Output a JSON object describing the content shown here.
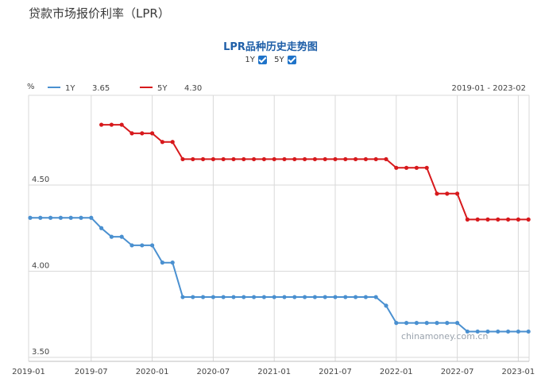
{
  "page": {
    "title": "贷款市场报价利率（LPR）"
  },
  "toggles": [
    {
      "label": "1Y",
      "checked": true
    },
    {
      "label": "5Y",
      "checked": true
    }
  ],
  "watermark": "chinamoney.com.cn",
  "chart_data": {
    "type": "line",
    "title": "LPR品种历史走势图",
    "ylabel": "%",
    "date_range": "2019-01 - 2023-02",
    "ylim": [
      3.5,
      4.9
    ],
    "yticks": [
      "3.50",
      "4.00",
      "4.50"
    ],
    "x_ticks": [
      "2019-01",
      "2019-07",
      "2020-01",
      "2020-07",
      "2021-01",
      "2021-07",
      "2022-01",
      "2022-07",
      "2023-01"
    ],
    "x": [
      "2019-01",
      "2019-02",
      "2019-03",
      "2019-04",
      "2019-05",
      "2019-06",
      "2019-07",
      "2019-08",
      "2019-09",
      "2019-10",
      "2019-11",
      "2019-12",
      "2020-01",
      "2020-02",
      "2020-03",
      "2020-04",
      "2020-05",
      "2020-06",
      "2020-07",
      "2020-08",
      "2020-09",
      "2020-10",
      "2020-11",
      "2020-12",
      "2021-01",
      "2021-02",
      "2021-03",
      "2021-04",
      "2021-05",
      "2021-06",
      "2021-07",
      "2021-08",
      "2021-09",
      "2021-10",
      "2021-11",
      "2021-12",
      "2022-01",
      "2022-02",
      "2022-03",
      "2022-04",
      "2022-05",
      "2022-06",
      "2022-07",
      "2022-08",
      "2022-09",
      "2022-10",
      "2022-11",
      "2022-12",
      "2023-01",
      "2023-02"
    ],
    "series": [
      {
        "name": "1Y",
        "legend_value": "3.65",
        "color": "#4a90d0",
        "values": [
          4.31,
          4.31,
          4.31,
          4.31,
          4.31,
          4.31,
          4.31,
          4.25,
          4.2,
          4.2,
          4.15,
          4.15,
          4.15,
          4.05,
          4.05,
          3.85,
          3.85,
          3.85,
          3.85,
          3.85,
          3.85,
          3.85,
          3.85,
          3.85,
          3.85,
          3.85,
          3.85,
          3.85,
          3.85,
          3.85,
          3.85,
          3.85,
          3.85,
          3.85,
          3.85,
          3.8,
          3.7,
          3.7,
          3.7,
          3.7,
          3.7,
          3.7,
          3.7,
          3.65,
          3.65,
          3.65,
          3.65,
          3.65,
          3.65,
          3.65
        ]
      },
      {
        "name": "5Y",
        "legend_value": "4.30",
        "color": "#d7191c",
        "values": [
          null,
          null,
          null,
          null,
          null,
          null,
          null,
          4.85,
          4.85,
          4.85,
          4.8,
          4.8,
          4.8,
          4.75,
          4.75,
          4.65,
          4.65,
          4.65,
          4.65,
          4.65,
          4.65,
          4.65,
          4.65,
          4.65,
          4.65,
          4.65,
          4.65,
          4.65,
          4.65,
          4.65,
          4.65,
          4.65,
          4.65,
          4.65,
          4.65,
          4.65,
          4.6,
          4.6,
          4.6,
          4.6,
          4.45,
          4.45,
          4.45,
          4.3,
          4.3,
          4.3,
          4.3,
          4.3,
          4.3,
          4.3
        ]
      }
    ],
    "grid": true
  }
}
